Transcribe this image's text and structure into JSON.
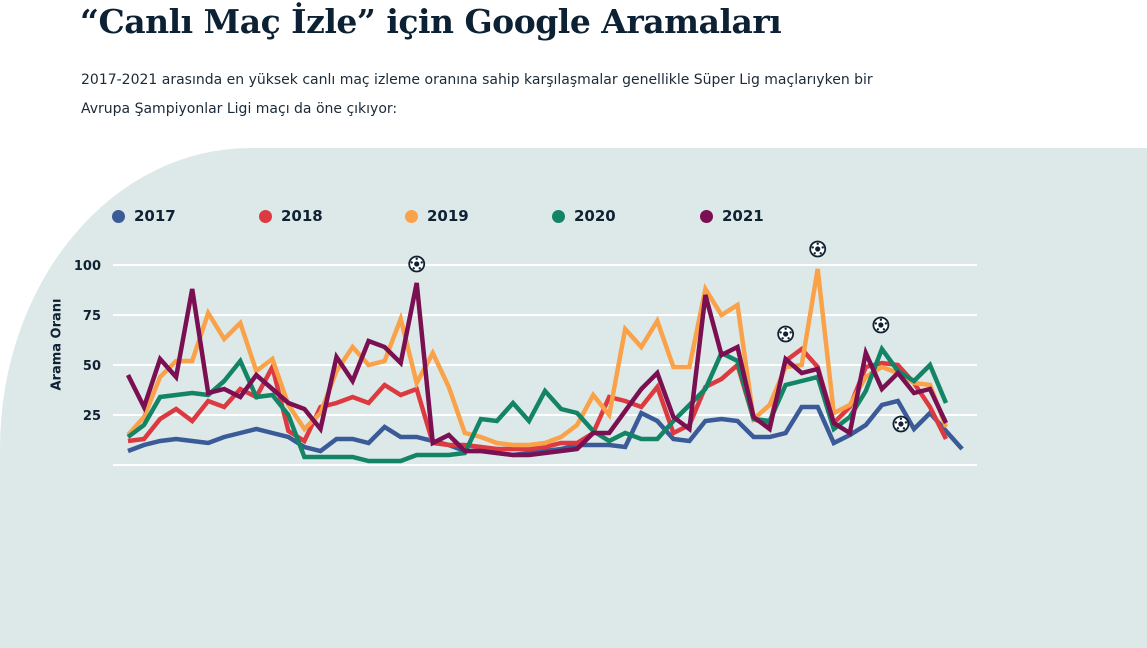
{
  "header": {
    "title": "“Canlı Maç İzle” için Google Aramaları",
    "subtitle_line1": "2017-2021 arasında en yüksek canlı maç izleme oranına sahip karşılaşmalar genellikle Süper Lig maçlarıyken bir",
    "subtitle_line2": "Avrupa Şampiyonlar Ligi maçı da öne çıkıyor:"
  },
  "chart_data": {
    "type": "line",
    "title": "",
    "xlabel": "",
    "ylabel": "Arama Oranı",
    "ylim": [
      0,
      100
    ],
    "yticks": [
      "25",
      "50",
      "75",
      "100"
    ],
    "grid": true,
    "legend_position": "top-left",
    "series": [
      {
        "name": "2017",
        "color": "#3b5a98",
        "values": [
          7,
          10,
          12,
          13,
          12,
          11,
          14,
          16,
          18,
          16,
          14,
          9,
          7,
          13,
          13,
          11,
          19,
          14,
          14,
          12,
          10,
          7,
          7,
          6,
          5,
          6,
          7,
          8,
          10,
          10,
          10,
          9,
          26,
          22,
          13,
          12,
          22,
          23,
          22,
          14,
          14,
          16,
          29,
          29,
          11,
          15,
          20,
          30,
          32,
          18,
          26,
          17,
          8
        ]
      },
      {
        "name": "2018",
        "color": "#dc3a40",
        "values": [
          12,
          13,
          23,
          28,
          22,
          32,
          29,
          38,
          34,
          49,
          17,
          12,
          29,
          31,
          34,
          31,
          40,
          35,
          38,
          11,
          10,
          10,
          9,
          8,
          8,
          8,
          9,
          11,
          11,
          16,
          34,
          32,
          29,
          39,
          16,
          20,
          39,
          43,
          50,
          23,
          20,
          52,
          58,
          49,
          21,
          29,
          49,
          51,
          50,
          41,
          29,
          13
        ]
      },
      {
        "name": "2019",
        "color": "#f9a24a",
        "values": [
          15,
          24,
          44,
          52,
          52,
          76,
          63,
          71,
          47,
          53,
          30,
          18,
          26,
          47,
          59,
          50,
          52,
          73,
          41,
          56,
          39,
          16,
          14,
          11,
          10,
          10,
          11,
          14,
          20,
          35,
          25,
          68,
          59,
          72,
          49,
          49,
          88,
          75,
          80,
          23,
          30,
          49,
          50,
          98,
          26,
          30,
          44,
          49,
          46,
          41,
          40,
          19
        ]
      },
      {
        "name": "2020",
        "color": "#138466",
        "values": [
          14,
          20,
          34,
          35,
          36,
          35,
          42,
          52,
          34,
          35,
          25,
          4,
          4,
          4,
          4,
          2,
          2,
          2,
          5,
          5,
          5,
          6,
          23,
          22,
          31,
          22,
          37,
          28,
          26,
          17,
          12,
          16,
          13,
          13,
          22,
          30,
          38,
          56,
          52,
          23,
          22,
          40,
          42,
          44,
          18,
          24,
          37,
          58,
          47,
          42,
          50,
          31
        ]
      },
      {
        "name": "2021",
        "color": "#7a0f52",
        "values": [
          45,
          29,
          53,
          44,
          88,
          36,
          38,
          34,
          45,
          38,
          31,
          28,
          18,
          54,
          42,
          62,
          59,
          51,
          91,
          11,
          15,
          7,
          7,
          6,
          5,
          5,
          6,
          7,
          8,
          16,
          16,
          27,
          38,
          46,
          24,
          18,
          85,
          55,
          59,
          24,
          18,
          53,
          46,
          48,
          21,
          16,
          56,
          38,
          46,
          36,
          38,
          21
        ]
      }
    ],
    "annotations": [
      {
        "icon": "soccer-ball-icon",
        "series": "2021",
        "index": 18
      },
      {
        "icon": "soccer-ball-icon",
        "series": "2019",
        "index": 43
      },
      {
        "icon": "soccer-ball-icon",
        "series": "2018",
        "index": 41
      },
      {
        "icon": "soccer-ball-icon",
        "series": "2020",
        "index": 47
      },
      {
        "icon": "soccer-ball-icon",
        "series": "2017",
        "index": 48
      }
    ]
  }
}
